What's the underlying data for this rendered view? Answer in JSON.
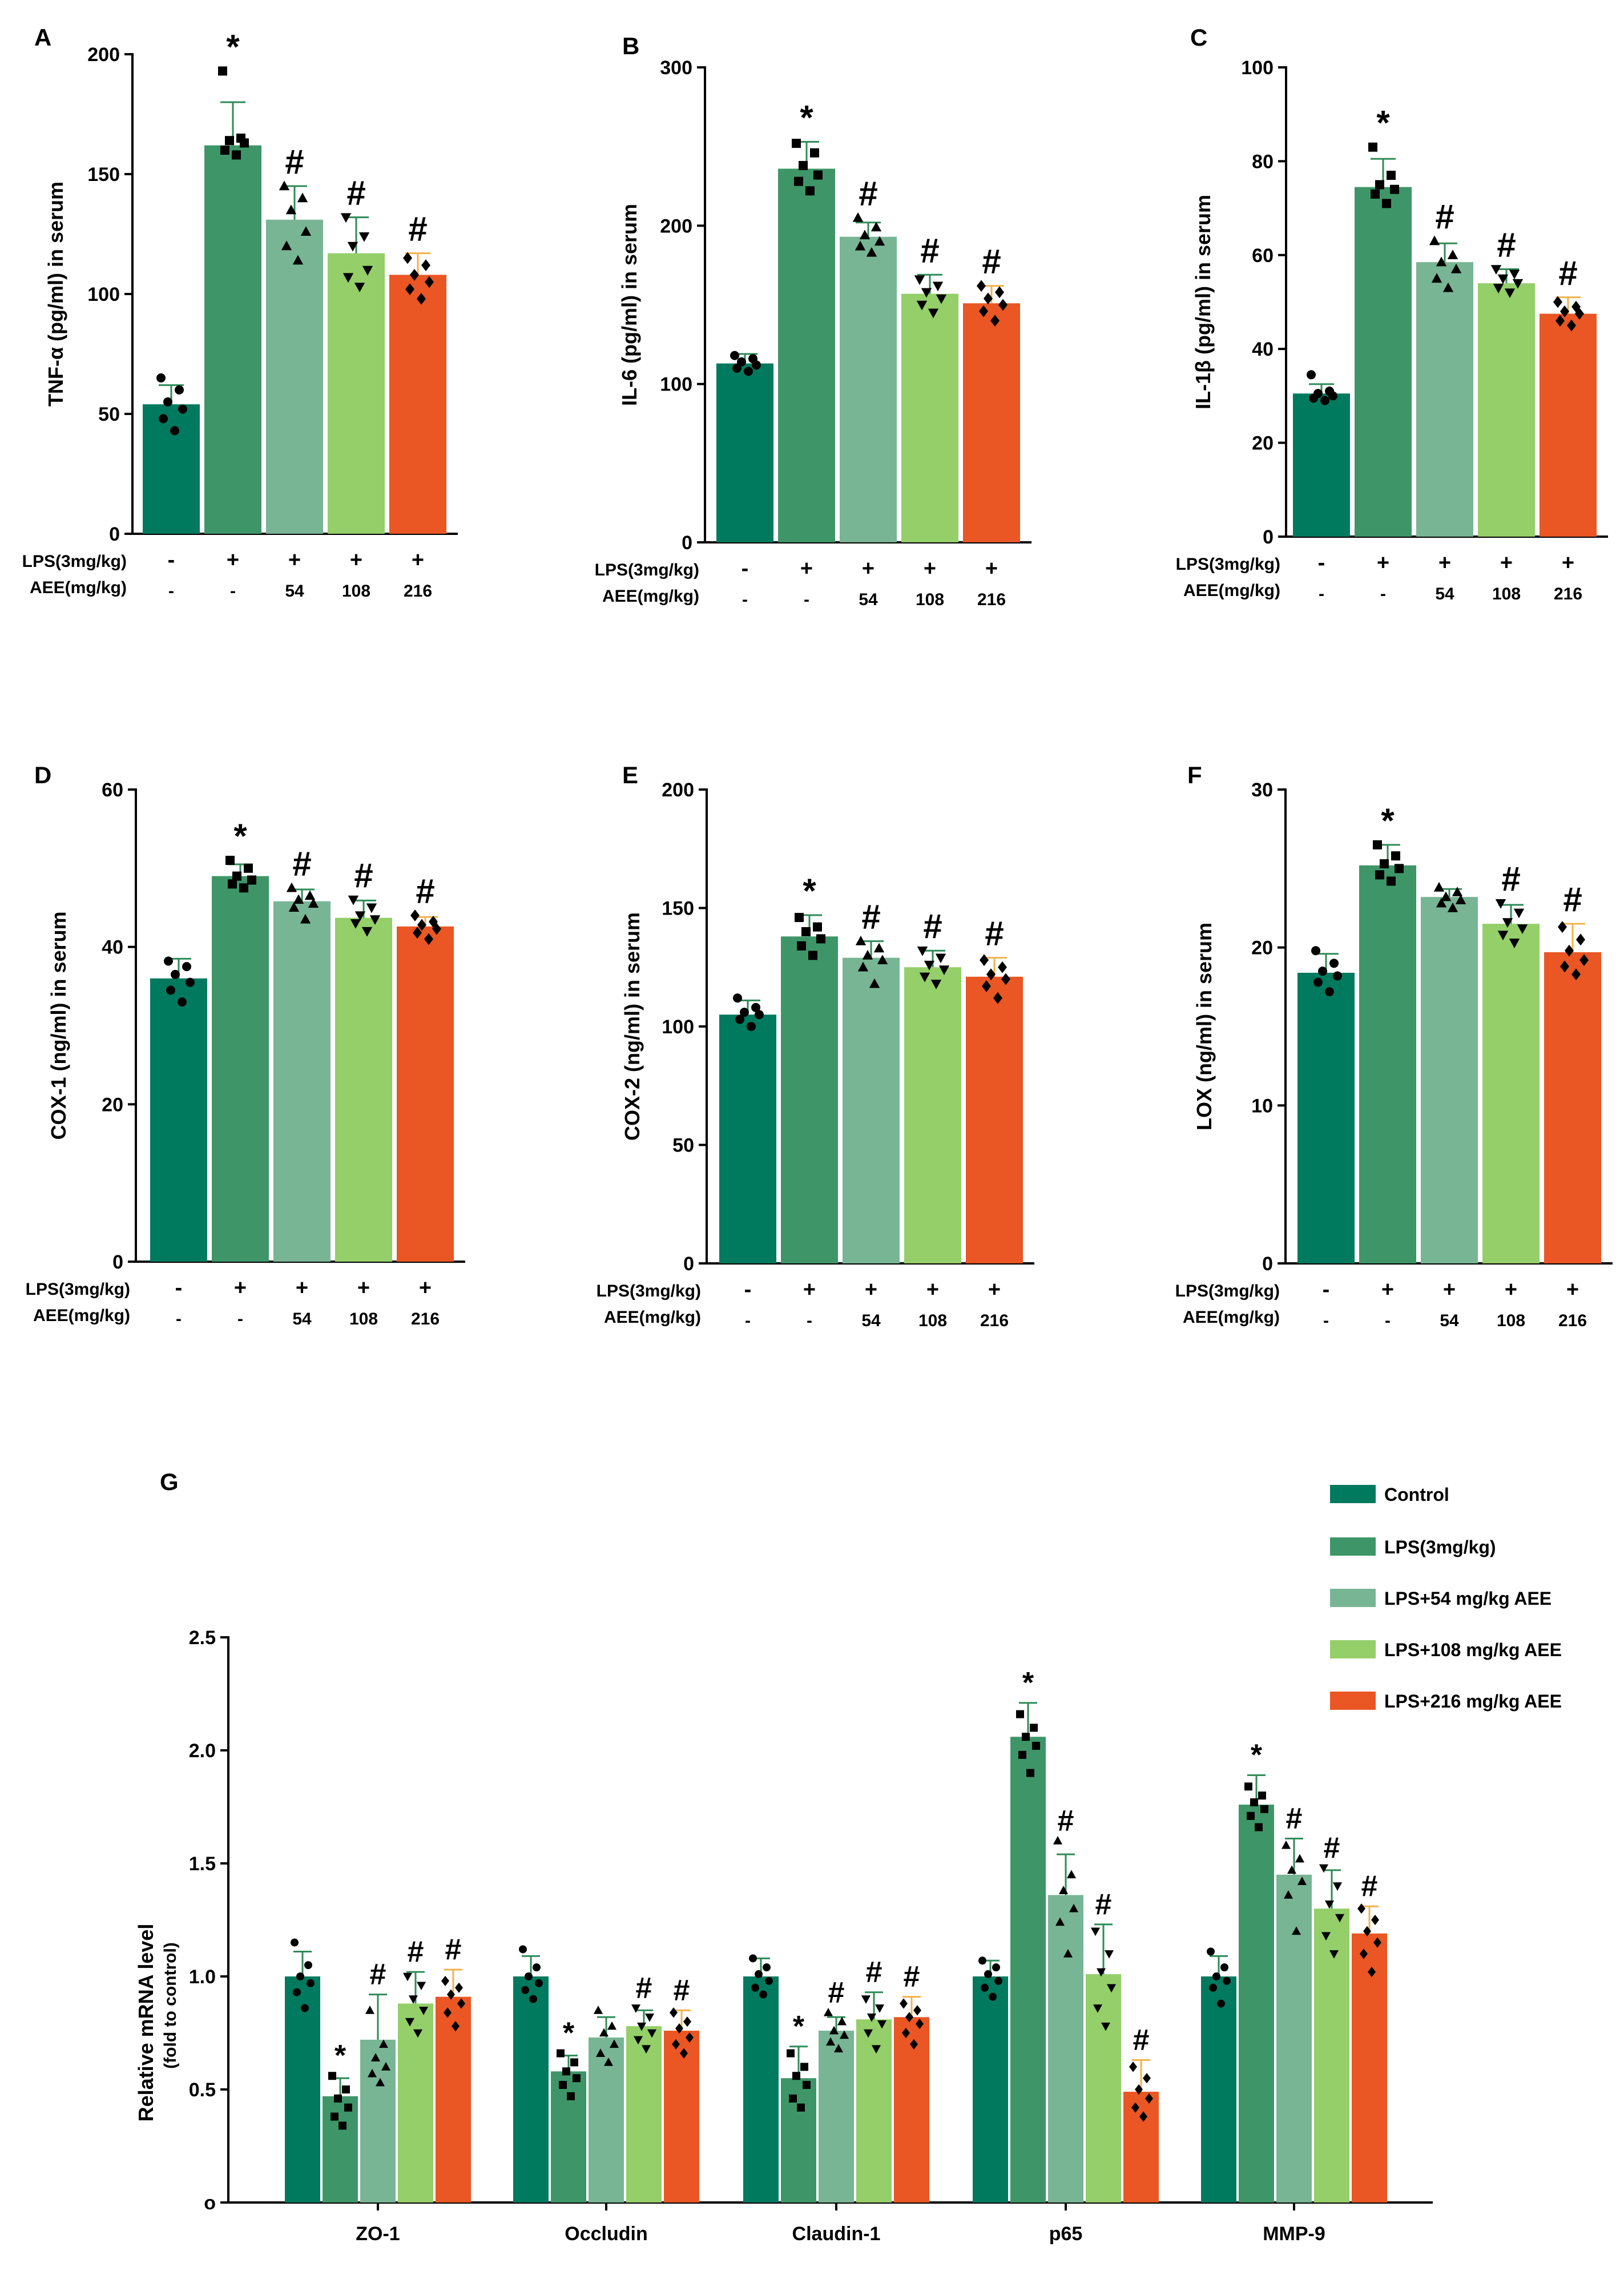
{
  "colors": {
    "Control": "#007A5E",
    "LPS": "#3E9668",
    "AEE54": "#78B595",
    "AEE108": "#94CF6A",
    "AEE216": "#EA5624",
    "err_default": "#2E8B57",
    "err_216": "#F2B24B"
  },
  "conditions": {
    "lps_label": "LPS(3mg/kg)",
    "aee_label": "AEE(mg/kg)",
    "lps_signs": [
      "-",
      "+",
      "+",
      "+",
      "+"
    ],
    "aee_values": [
      "-",
      "-",
      "54",
      "108",
      "216"
    ]
  },
  "chart_data": [
    {
      "panel": "A",
      "type": "bar",
      "ylabel": "TNF-α (pg/ml) in serum",
      "ylim": [
        0,
        200
      ],
      "yticks": [
        0,
        50,
        100,
        150,
        200
      ],
      "ytick_labels": [
        "0",
        "50",
        "100",
        "150",
        "200"
      ],
      "values": [
        54,
        162,
        131,
        117,
        108
      ],
      "errors": [
        8,
        18,
        14,
        15,
        9
      ],
      "sig": [
        "",
        "*",
        "#",
        "#",
        "#"
      ],
      "points": [
        [
          65,
          60,
          55,
          52,
          48,
          43
        ],
        [
          193,
          165,
          164,
          163,
          160,
          158
        ],
        [
          145,
          140,
          135,
          126,
          120,
          114
        ],
        [
          132,
          124,
          120,
          110,
          107,
          103
        ],
        [
          115,
          112,
          108,
          105,
          102,
          98
        ]
      ]
    },
    {
      "panel": "B",
      "type": "bar",
      "ylabel": "IL-6 (pg/ml) in serum",
      "ylim": [
        0,
        300
      ],
      "yticks": [
        0,
        100,
        200,
        300
      ],
      "ytick_labels": [
        "0",
        "100",
        "200",
        "300"
      ],
      "values": [
        113,
        236,
        193,
        157,
        151
      ],
      "errors": [
        6,
        17,
        9,
        12,
        11
      ],
      "sig": [
        "",
        "*",
        "#",
        "#",
        "#"
      ],
      "points": [
        [
          118,
          116,
          114,
          112,
          110,
          108
        ],
        [
          252,
          246,
          238,
          232,
          228,
          222
        ],
        [
          205,
          199,
          194,
          190,
          187,
          183
        ],
        [
          166,
          162,
          158,
          154,
          150,
          145
        ],
        [
          162,
          158,
          154,
          150,
          146,
          140
        ]
      ]
    },
    {
      "panel": "C",
      "type": "bar",
      "ylabel": "IL-1β (pg/ml) in serum",
      "ylim": [
        0,
        100
      ],
      "yticks": [
        0,
        20,
        40,
        60,
        80,
        100
      ],
      "ytick_labels": [
        "0",
        "20",
        "40",
        "60",
        "80",
        "100"
      ],
      "values": [
        30.5,
        74.5,
        58.5,
        54,
        47.5
      ],
      "errors": [
        2,
        6,
        4,
        3,
        3.5
      ],
      "sig": [
        "",
        "*",
        "#",
        "#",
        "#"
      ],
      "points": [
        [
          34.5,
          31,
          30.5,
          30,
          29.5,
          29
        ],
        [
          83,
          77,
          75,
          74,
          73,
          71
        ],
        [
          63,
          60,
          58.5,
          57,
          55,
          53
        ],
        [
          57,
          56,
          55,
          54,
          53,
          52
        ],
        [
          50,
          49,
          48,
          47.5,
          46,
          45
        ]
      ]
    },
    {
      "panel": "D",
      "type": "bar",
      "ylabel": "COX-1 (ng/ml) in serum",
      "ylim": [
        0,
        60
      ],
      "yticks": [
        0,
        20,
        40,
        60
      ],
      "ytick_labels": [
        "0",
        "20",
        "40",
        "60"
      ],
      "values": [
        36,
        49,
        45.8,
        43.7,
        42.6
      ],
      "errors": [
        2.5,
        1.5,
        1.5,
        2.2,
        1.2
      ],
      "sig": [
        "",
        "*",
        "#",
        "#",
        "#"
      ],
      "points": [
        [
          38.2,
          37.5,
          36.5,
          35.5,
          34.5,
          33
        ],
        [
          51,
          50,
          49,
          48.5,
          48,
          47.5
        ],
        [
          47.5,
          46.5,
          46,
          45.5,
          45,
          43.5
        ],
        [
          46,
          45,
          44,
          43.5,
          43,
          42
        ],
        [
          44,
          43.2,
          42.8,
          42.3,
          41.8,
          41
        ]
      ]
    },
    {
      "panel": "E",
      "type": "bar",
      "ylabel": "COX-2 (ng/ml) in serum",
      "ylim": [
        0,
        200
      ],
      "yticks": [
        0,
        50,
        100,
        150,
        200
      ],
      "ytick_labels": [
        "0",
        "50",
        "100",
        "150",
        "200"
      ],
      "values": [
        105,
        138,
        129,
        125,
        121
      ],
      "errors": [
        6,
        9,
        7,
        7,
        8
      ],
      "sig": [
        "",
        "*",
        "#",
        "#",
        "#"
      ],
      "points": [
        [
          112,
          108,
          106,
          105,
          103,
          100
        ],
        [
          146,
          142,
          140,
          137,
          134,
          130
        ],
        [
          136,
          133,
          130,
          128,
          125,
          118
        ],
        [
          132,
          129,
          126,
          124,
          121,
          118
        ],
        [
          128,
          125,
          122,
          120,
          117,
          112
        ]
      ]
    },
    {
      "panel": "F",
      "type": "bar",
      "ylabel": "LOX (ng/ml) in serum",
      "ylim": [
        0,
        30
      ],
      "yticks": [
        0,
        10,
        20,
        30
      ],
      "ytick_labels": [
        "0",
        "10",
        "20",
        "30"
      ],
      "values": [
        18.4,
        25.2,
        23.2,
        21.5,
        19.7
      ],
      "errors": [
        1.2,
        1.3,
        0.5,
        1.2,
        1.8
      ],
      "sig": [
        "",
        "*",
        "",
        "#",
        "#"
      ],
      "points": [
        [
          19.8,
          19,
          18.5,
          18.2,
          17.8,
          17.2
        ],
        [
          26.5,
          25.8,
          25.3,
          25,
          24.6,
          24.2
        ],
        [
          23.8,
          23.5,
          23.2,
          23,
          22.8,
          22.5
        ],
        [
          22.8,
          22.2,
          21.6,
          21.2,
          20.8,
          20.3
        ],
        [
          21.3,
          20.5,
          19.8,
          19.2,
          18.8,
          18.3
        ]
      ]
    },
    {
      "panel": "G",
      "type": "bar",
      "title": "",
      "ylabel": "Relative mRNA level",
      "ysublabel": "(fold to control)",
      "ylim": [
        0,
        2.5
      ],
      "yticks": [
        0,
        0.5,
        1.0,
        1.5,
        2.0,
        2.5
      ],
      "ytick_labels": [
        "o",
        "0.5",
        "1.0",
        "1.5",
        "2.0",
        "2.5"
      ],
      "categories": [
        "ZO-1",
        "Occludin",
        "Claudin-1",
        "p65",
        "MMP-9"
      ],
      "series": [
        {
          "name": "Control",
          "values": [
            1.0,
            1.0,
            1.0,
            1.0,
            1.0
          ],
          "errors": [
            0.11,
            0.09,
            0.08,
            0.07,
            0.09
          ],
          "sig": [
            "",
            "",
            "",
            "",
            ""
          ],
          "points": [
            [
              1.15,
              1.05,
              1.0,
              0.97,
              0.93,
              0.86
            ],
            [
              1.12,
              1.04,
              1.0,
              0.97,
              0.94,
              0.9
            ],
            [
              1.08,
              1.04,
              1.01,
              0.98,
              0.95,
              0.92
            ],
            [
              1.07,
              1.04,
              1.01,
              0.98,
              0.95,
              0.91
            ],
            [
              1.11,
              1.04,
              1.0,
              0.98,
              0.95,
              0.88
            ]
          ]
        },
        {
          "name": "LPS(3mg/kg)",
          "values": [
            0.47,
            0.58,
            0.55,
            2.06,
            1.76
          ],
          "errors": [
            0.08,
            0.07,
            0.14,
            0.15,
            0.13
          ],
          "sig": [
            "*",
            "*",
            "*",
            "*",
            "*"
          ],
          "points": [
            [
              0.56,
              0.5,
              0.46,
              0.42,
              0.38,
              0.34
            ],
            [
              0.66,
              0.62,
              0.58,
              0.55,
              0.52,
              0.47
            ],
            [
              0.66,
              0.6,
              0.56,
              0.52,
              0.46,
              0.42
            ],
            [
              2.16,
              2.1,
              2.06,
              2.02,
              1.98,
              1.9
            ],
            [
              1.84,
              1.8,
              1.77,
              1.74,
              1.71,
              1.66
            ]
          ]
        },
        {
          "name": "LPS+54 mg/kg AEE",
          "values": [
            0.72,
            0.73,
            0.76,
            1.36,
            1.45
          ],
          "errors": [
            0.2,
            0.09,
            0.06,
            0.18,
            0.16
          ],
          "sig": [
            "#",
            "",
            "#",
            "#",
            "#"
          ],
          "points": [
            [
              0.85,
              0.7,
              0.64,
              0.6,
              0.57,
              0.53
            ],
            [
              0.85,
              0.78,
              0.75,
              0.7,
              0.66,
              0.62
            ],
            [
              0.84,
              0.8,
              0.76,
              0.74,
              0.71,
              0.68
            ],
            [
              1.6,
              1.45,
              1.38,
              1.3,
              1.24,
              1.1
            ],
            [
              1.58,
              1.52,
              1.47,
              1.42,
              1.36,
              1.2
            ]
          ]
        },
        {
          "name": "LPS+108 mg/kg AEE",
          "values": [
            0.88,
            0.78,
            0.81,
            1.01,
            1.3
          ],
          "errors": [
            0.14,
            0.07,
            0.12,
            0.22,
            0.17
          ],
          "sig": [
            "#",
            "#",
            "#",
            "#",
            "#"
          ],
          "points": [
            [
              1.0,
              0.96,
              0.9,
              0.85,
              0.8,
              0.75
            ],
            [
              0.86,
              0.82,
              0.78,
              0.75,
              0.72,
              0.68
            ],
            [
              0.9,
              0.86,
              0.82,
              0.79,
              0.75,
              0.68
            ],
            [
              1.2,
              1.1,
              1.02,
              0.95,
              0.86,
              0.78
            ],
            [
              1.48,
              1.4,
              1.32,
              1.26,
              1.18,
              1.1
            ]
          ]
        },
        {
          "name": "LPS+216 mg/kg AEE",
          "values": [
            0.91,
            0.76,
            0.82,
            0.49,
            1.19
          ],
          "errors": [
            0.12,
            0.09,
            0.09,
            0.14,
            0.12
          ],
          "sig": [
            "#",
            "#",
            "#",
            "#",
            "#"
          ],
          "points": [
            [
              0.98,
              0.95,
              0.92,
              0.88,
              0.84,
              0.78
            ],
            [
              0.84,
              0.8,
              0.77,
              0.73,
              0.7,
              0.66
            ],
            [
              0.88,
              0.85,
              0.82,
              0.79,
              0.75,
              0.7
            ],
            [
              0.6,
              0.55,
              0.5,
              0.46,
              0.42,
              0.38
            ],
            [
              1.3,
              1.25,
              1.2,
              1.15,
              1.1,
              1.02
            ]
          ]
        }
      ]
    }
  ]
}
